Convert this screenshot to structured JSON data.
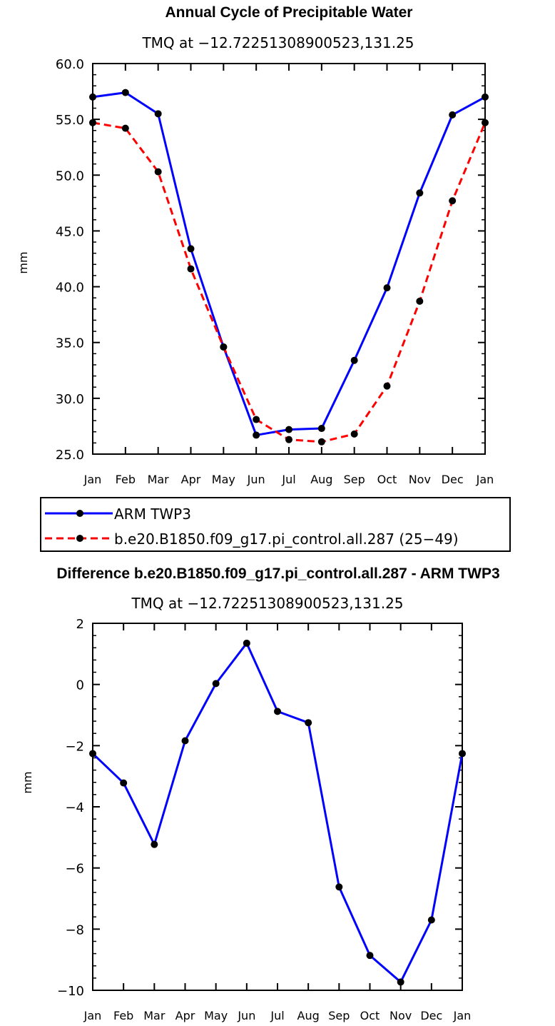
{
  "chart_data": [
    {
      "type": "line",
      "title": "Annual Cycle of Precipitable Water",
      "subtitle": "TMQ at −12.72251308900523,131.25",
      "ylabel": "mm",
      "xlabel": "",
      "categories": [
        "Jan",
        "Feb",
        "Mar",
        "Apr",
        "May",
        "Jun",
        "Jul",
        "Aug",
        "Sep",
        "Oct",
        "Nov",
        "Dec",
        "Jan"
      ],
      "ylim": [
        25.0,
        60.0
      ],
      "yticks": [
        "25.0",
        "30.0",
        "35.0",
        "40.0",
        "45.0",
        "50.0",
        "55.0",
        "60.0"
      ],
      "legend_position": "below",
      "series": [
        {
          "name": "ARM TWP3",
          "color": "#0000ff",
          "style": "solid",
          "marker": "dot",
          "values": [
            57.0,
            57.4,
            55.5,
            43.4,
            34.6,
            26.7,
            27.2,
            27.3,
            33.4,
            39.9,
            48.4,
            55.4,
            57.0
          ]
        },
        {
          "name": "b.e20.B1850.f09_g17.pi_control.all.287 (25−49)",
          "color": "#ff0000",
          "style": "dashed",
          "marker": "dot",
          "values": [
            54.7,
            54.2,
            50.3,
            41.6,
            34.6,
            28.1,
            26.3,
            26.1,
            26.8,
            31.1,
            38.7,
            47.7,
            54.7
          ]
        }
      ],
      "grid": false
    },
    {
      "type": "line",
      "title": "Difference b.e20.B1850.f09_g17.pi_control.all.287 - ARM TWP3",
      "subtitle": "TMQ at −12.72251308900523,131.25",
      "ylabel": "mm",
      "xlabel": "",
      "categories": [
        "Jan",
        "Feb",
        "Mar",
        "Apr",
        "May",
        "Jun",
        "Jul",
        "Aug",
        "Sep",
        "Oct",
        "Nov",
        "Dec",
        "Jan"
      ],
      "ylim": [
        -10,
        2
      ],
      "yticks": [
        "−10",
        "−8",
        "−6",
        "−4",
        "−2",
        "0",
        "2"
      ],
      "series": [
        {
          "color": "#0000ff",
          "style": "solid",
          "marker": "dot",
          "values": [
            -2.26,
            -3.22,
            -5.23,
            -1.84,
            0.03,
            1.35,
            -0.88,
            -1.25,
            -6.62,
            -8.86,
            -9.73,
            -7.7,
            -2.26
          ]
        }
      ],
      "grid": false
    }
  ]
}
